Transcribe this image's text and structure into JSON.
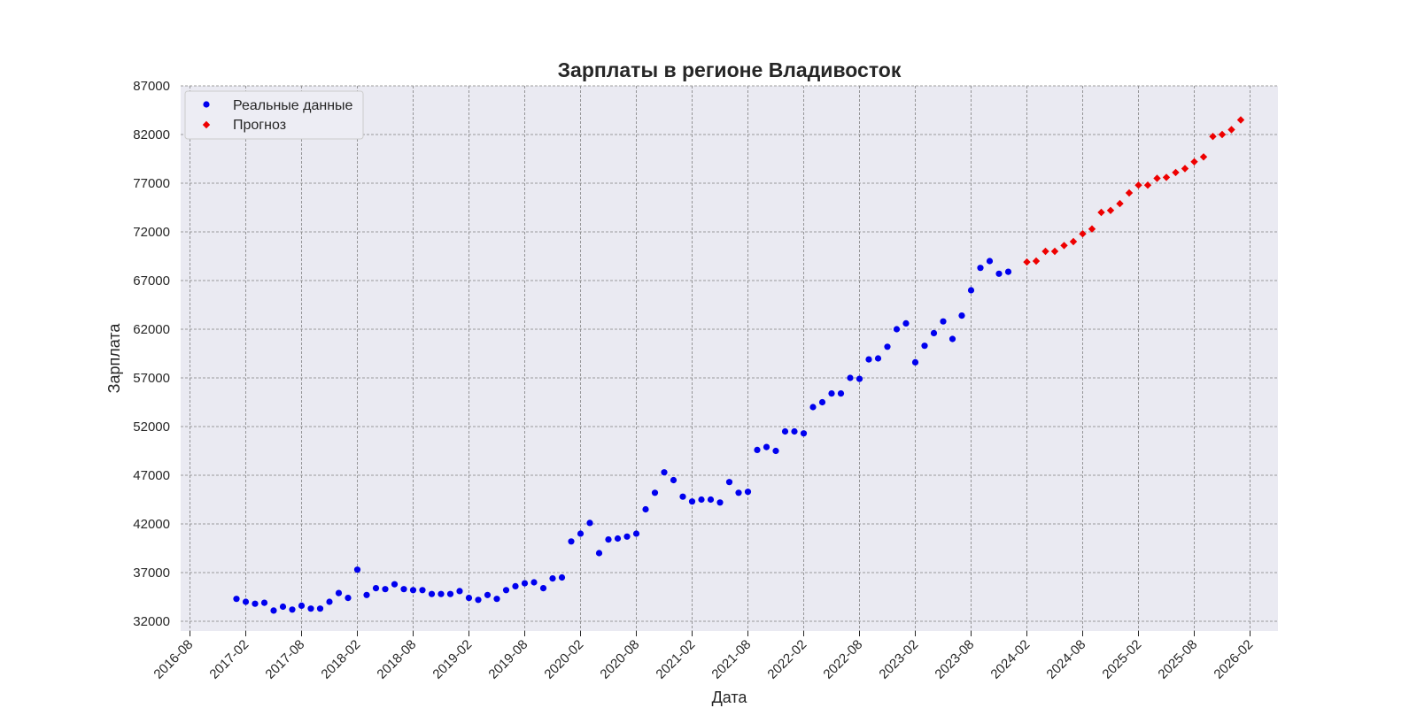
{
  "chart_data": {
    "type": "scatter",
    "title": "Зарплаты в регионе Владивосток",
    "xlabel": "Дата",
    "ylabel": "Зарплата",
    "ylim": [
      31000,
      87000
    ],
    "xlim": [
      "2016-07",
      "2026-05"
    ],
    "yticks": [
      "32000",
      "37000",
      "42000",
      "47000",
      "52000",
      "57000",
      "62000",
      "67000",
      "72000",
      "77000",
      "82000",
      "87000"
    ],
    "xticks": [
      "2016-08",
      "2017-02",
      "2017-08",
      "2018-02",
      "2018-08",
      "2019-02",
      "2019-08",
      "2020-02",
      "2020-08",
      "2021-02",
      "2021-08",
      "2022-02",
      "2022-08",
      "2023-02",
      "2023-08",
      "2024-02",
      "2024-08",
      "2025-02",
      "2025-08",
      "2026-02"
    ],
    "grid": true,
    "legend_position": "top-left",
    "colors": {
      "actual": "#0000ee",
      "forecast": "#ee0000",
      "plot_bg": "#eaeaf2",
      "grid": "#808080"
    },
    "series": [
      {
        "name": "Реальные данные",
        "marker": "circle",
        "x": [
          "2017-01",
          "2017-02",
          "2017-03",
          "2017-04",
          "2017-05",
          "2017-06",
          "2017-07",
          "2017-08",
          "2017-09",
          "2017-10",
          "2017-11",
          "2017-12",
          "2018-01",
          "2018-02",
          "2018-03",
          "2018-04",
          "2018-05",
          "2018-06",
          "2018-07",
          "2018-08",
          "2018-09",
          "2018-10",
          "2018-11",
          "2018-12",
          "2019-01",
          "2019-02",
          "2019-03",
          "2019-04",
          "2019-05",
          "2019-06",
          "2019-07",
          "2019-08",
          "2019-09",
          "2019-10",
          "2019-11",
          "2019-12",
          "2020-01",
          "2020-02",
          "2020-03",
          "2020-04",
          "2020-05",
          "2020-06",
          "2020-07",
          "2020-08",
          "2020-09",
          "2020-10",
          "2020-11",
          "2020-12",
          "2021-01",
          "2021-02",
          "2021-03",
          "2021-04",
          "2021-05",
          "2021-06",
          "2021-07",
          "2021-08",
          "2021-09",
          "2021-10",
          "2021-11",
          "2021-12",
          "2022-01",
          "2022-02",
          "2022-03",
          "2022-04",
          "2022-05",
          "2022-06",
          "2022-07",
          "2022-08",
          "2022-09",
          "2022-10",
          "2022-11",
          "2022-12",
          "2023-01",
          "2023-02",
          "2023-03",
          "2023-04",
          "2023-05",
          "2023-06",
          "2023-07",
          "2023-08",
          "2023-09",
          "2023-10",
          "2023-11",
          "2023-12",
          "2024-01"
        ],
        "y": [
          34300,
          34000,
          33800,
          33900,
          33100,
          33500,
          33200,
          33600,
          33300,
          33300,
          34000,
          34900,
          34400,
          37300,
          34700,
          35400,
          35300,
          35800,
          35300,
          35200,
          35200,
          34800,
          34800,
          34800,
          35100,
          34400,
          34200,
          34700,
          34300,
          35200,
          35600,
          35900,
          36000,
          35400,
          36400,
          36500,
          40200,
          41000,
          42100,
          39000,
          40400,
          40500,
          40700,
          41000,
          43500,
          45200,
          47300,
          46500,
          44800,
          44300,
          44500,
          44500,
          44200,
          46300,
          45200,
          45300,
          49600,
          49900,
          49500,
          51500,
          51500,
          51300,
          54000,
          54500,
          55400,
          55400,
          57000,
          56900,
          58900,
          59000,
          60200,
          62000,
          62600,
          58600,
          60300,
          61600,
          62800,
          61000,
          63400,
          66000,
          68300,
          69000,
          67700,
          67900,
          null
        ],
        "values_note": ""
      },
      {
        "name": "Прогноз",
        "marker": "diamond",
        "x": [
          "2024-02",
          "2024-03",
          "2024-04",
          "2024-05",
          "2024-06",
          "2024-07",
          "2024-08",
          "2024-09",
          "2024-10",
          "2024-11",
          "2024-12",
          "2025-01",
          "2025-02",
          "2025-03",
          "2025-04",
          "2025-05",
          "2025-06",
          "2025-07",
          "2025-08",
          "2025-09",
          "2025-10",
          "2025-11",
          "2025-12",
          "2026-01"
        ],
        "y": [
          68900,
          69000,
          70000,
          70000,
          70600,
          71000,
          71800,
          72300,
          74000,
          74200,
          74900,
          76000,
          76800,
          76800,
          77500,
          77600,
          78100,
          78500,
          79200,
          79700,
          81800,
          82000,
          82500,
          83500
        ]
      }
    ]
  }
}
